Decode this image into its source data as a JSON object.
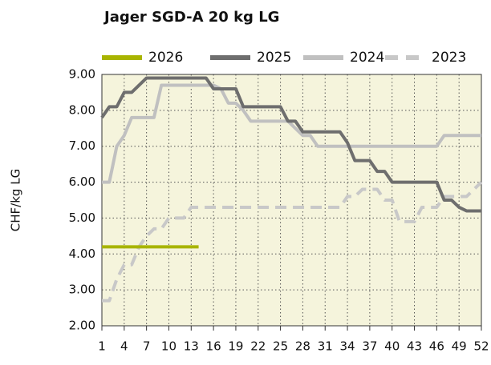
{
  "chart_data": {
    "type": "line",
    "title": "Jager SGD-A 20 kg LG",
    "y_label": "CHF/kg LG",
    "x": [
      1,
      2,
      3,
      4,
      5,
      6,
      7,
      8,
      9,
      10,
      11,
      12,
      13,
      14,
      15,
      16,
      17,
      18,
      19,
      20,
      21,
      22,
      23,
      24,
      25,
      26,
      27,
      28,
      29,
      30,
      31,
      32,
      33,
      34,
      35,
      36,
      37,
      38,
      39,
      40,
      41,
      42,
      43,
      44,
      45,
      46,
      47,
      48,
      49,
      50,
      51,
      52
    ],
    "xlim": [
      1,
      52
    ],
    "xticks": [
      1,
      4,
      7,
      10,
      13,
      16,
      19,
      22,
      25,
      28,
      31,
      34,
      37,
      40,
      43,
      46,
      49,
      52
    ],
    "ylim": [
      2,
      9
    ],
    "yticks": [
      {
        "value": 2,
        "label": "2.00"
      },
      {
        "value": 3,
        "label": "3.00"
      },
      {
        "value": 4,
        "label": "4.00"
      },
      {
        "value": 5,
        "label": "5.00"
      },
      {
        "value": 6,
        "label": "6.00"
      },
      {
        "value": 7,
        "label": "7.00"
      },
      {
        "value": 8,
        "label": "8.00"
      },
      {
        "value": 9,
        "label": "9.00"
      }
    ],
    "grid": true,
    "background": "#f5f4dc",
    "legend": "top",
    "series": [
      {
        "name": "2026",
        "color": "#a8b400",
        "dashed": false,
        "values": [
          4.2,
          4.2,
          4.2,
          4.2,
          4.2,
          4.2,
          4.2,
          4.2,
          4.2,
          4.2,
          4.2,
          4.2,
          4.2,
          4.2,
          null,
          null,
          null,
          null,
          null,
          null,
          null,
          null,
          null,
          null,
          null,
          null,
          null,
          null,
          null,
          null,
          null,
          null,
          null,
          null,
          null,
          null,
          null,
          null,
          null,
          null,
          null,
          null,
          null,
          null,
          null,
          null,
          null,
          null,
          null,
          null,
          null,
          null
        ]
      },
      {
        "name": "2025",
        "color": "#6e6e6e",
        "dashed": false,
        "values": [
          7.8,
          8.1,
          8.1,
          8.5,
          8.5,
          8.7,
          8.9,
          8.9,
          8.9,
          8.9,
          8.9,
          8.9,
          8.9,
          8.9,
          8.9,
          8.6,
          8.6,
          8.6,
          8.6,
          8.1,
          8.1,
          8.1,
          8.1,
          8.1,
          8.1,
          7.7,
          7.7,
          7.4,
          7.4,
          7.4,
          7.4,
          7.4,
          7.4,
          7.1,
          6.6,
          6.6,
          6.6,
          6.3,
          6.3,
          6.0,
          6.0,
          6.0,
          6.0,
          6.0,
          6.0,
          6.0,
          5.5,
          5.5,
          5.3,
          5.2,
          5.2,
          5.2
        ]
      },
      {
        "name": "2024",
        "color": "#c0c0c0",
        "dashed": false,
        "values": [
          6.0,
          6.0,
          7.0,
          7.3,
          7.8,
          7.8,
          7.8,
          7.8,
          8.7,
          8.7,
          8.7,
          8.7,
          8.7,
          8.7,
          8.7,
          8.7,
          8.6,
          8.2,
          8.2,
          8.0,
          7.7,
          7.7,
          7.7,
          7.7,
          7.7,
          7.7,
          7.5,
          7.3,
          7.3,
          7.0,
          7.0,
          7.0,
          7.0,
          7.0,
          7.0,
          7.0,
          7.0,
          7.0,
          7.0,
          7.0,
          7.0,
          7.0,
          7.0,
          7.0,
          7.0,
          7.0,
          7.3,
          7.3,
          7.3,
          7.3,
          7.3,
          7.3
        ]
      },
      {
        "name": "2023",
        "color": "#c8c8c8",
        "dashed": true,
        "values": [
          2.7,
          2.7,
          3.3,
          3.7,
          3.7,
          4.2,
          4.5,
          4.7,
          4.7,
          5.0,
          5.0,
          5.0,
          5.3,
          5.3,
          5.3,
          5.3,
          5.3,
          5.3,
          5.3,
          5.3,
          5.3,
          5.3,
          5.3,
          5.3,
          5.3,
          5.3,
          5.3,
          5.3,
          5.3,
          5.3,
          5.3,
          5.3,
          5.3,
          5.6,
          5.6,
          5.8,
          5.8,
          5.8,
          5.5,
          5.5,
          4.9,
          4.9,
          4.9,
          5.3,
          5.3,
          5.3,
          5.6,
          5.6,
          5.6,
          5.6,
          5.8,
          6.0
        ]
      }
    ]
  }
}
